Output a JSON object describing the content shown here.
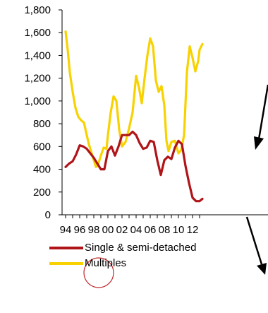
{
  "chart_data": {
    "type": "line",
    "title": "",
    "xlabel": "",
    "ylabel": "",
    "ylim": [
      0,
      1800
    ],
    "yticks": [
      0,
      200,
      400,
      600,
      800,
      1000,
      1200,
      1400,
      1600,
      1800
    ],
    "ytick_labels": [
      "0",
      "200",
      "400",
      "600",
      "800",
      "1,000",
      "1,200",
      "1,400",
      "1,600",
      "1,800"
    ],
    "xlim": [
      1994,
      2013.4
    ],
    "xtick_labels": [
      "94",
      "96",
      "98",
      "00",
      "02",
      "04",
      "06",
      "08",
      "10",
      "12"
    ],
    "grid": false,
    "legend_position": "bottom",
    "series": [
      {
        "name": "Single & semi-detached",
        "color": "#b01418",
        "x": [
          1994.0,
          1994.5,
          1995.0,
          1995.5,
          1996.0,
          1996.5,
          1997.0,
          1997.5,
          1998.0,
          1998.5,
          1999.0,
          1999.5,
          2000.0,
          2000.5,
          2001.0,
          2001.5,
          2002.0,
          2002.5,
          2003.0,
          2003.5,
          2004.0,
          2004.5,
          2005.0,
          2005.5,
          2006.0,
          2006.5,
          2007.0,
          2007.5,
          2008.0,
          2008.5,
          2009.0,
          2009.5,
          2010.0,
          2010.5,
          2011.0,
          2011.5,
          2012.0,
          2012.5,
          2013.0,
          2013.4
        ],
        "values": [
          420,
          450,
          470,
          530,
          610,
          600,
          580,
          540,
          500,
          450,
          400,
          400,
          560,
          600,
          520,
          600,
          700,
          700,
          700,
          730,
          700,
          630,
          580,
          590,
          650,
          640,
          480,
          350,
          480,
          510,
          490,
          590,
          650,
          620,
          430,
          280,
          150,
          120,
          120,
          140
        ]
      },
      {
        "name": "Multiples",
        "color": "#f8d200",
        "x": [
          1994.0,
          1994.3,
          1994.6,
          1995.0,
          1995.4,
          1995.8,
          1996.2,
          1996.6,
          1997.0,
          1997.3,
          1997.6,
          1998.0,
          1998.3,
          1998.6,
          1999.0,
          1999.4,
          1999.8,
          2000.0,
          2000.4,
          2000.8,
          2001.2,
          2001.6,
          2002.0,
          2002.5,
          2003.0,
          2003.5,
          2004.0,
          2004.4,
          2004.8,
          2005.2,
          2005.6,
          2006.0,
          2006.4,
          2006.8,
          2007.2,
          2007.6,
          2008.0,
          2008.3,
          2008.6,
          2009.0,
          2009.5,
          2010.0,
          2010.4,
          2010.8,
          2011.2,
          2011.6,
          2012.0,
          2012.4,
          2012.8,
          2013.0,
          2013.4
        ],
        "values": [
          1610,
          1450,
          1250,
          1080,
          940,
          860,
          830,
          810,
          700,
          620,
          560,
          480,
          420,
          440,
          520,
          590,
          580,
          700,
          900,
          1040,
          1000,
          750,
          600,
          640,
          760,
          900,
          1220,
          1120,
          980,
          1200,
          1400,
          1550,
          1480,
          1180,
          1080,
          1130,
          960,
          650,
          560,
          640,
          650,
          540,
          570,
          700,
          1250,
          1480,
          1380,
          1260,
          1350,
          1450,
          1500
        ]
      }
    ]
  }
}
